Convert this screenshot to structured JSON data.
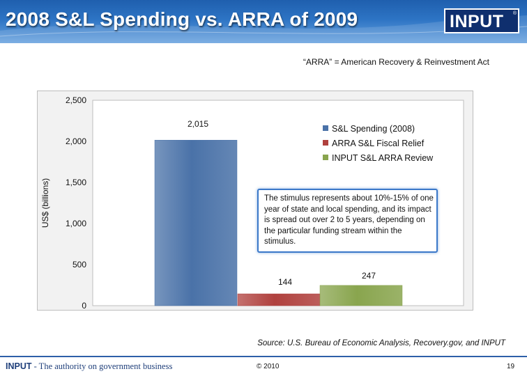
{
  "header": {
    "title": "2008 S&L Spending vs. ARRA of 2009",
    "logo_text": "INPUT",
    "logo_mark": "®"
  },
  "subtitle": "“ARRA” = American Recovery & Reinvestment Act",
  "chart_data": {
    "type": "bar",
    "ylabel": "US$ (billions)",
    "xlabel": "",
    "ylim": [
      0,
      2500
    ],
    "yticks": [
      0,
      500,
      1000,
      1500,
      2000,
      2500
    ],
    "ytick_labels": [
      "0",
      "500",
      "1,000",
      "1,500",
      "2,000",
      "2,500"
    ],
    "grid": false,
    "legend_position": "top-right",
    "series": [
      {
        "name": "S&L Spending (2008)",
        "value": 2015,
        "label": "2,015",
        "color": "#4a72a8"
      },
      {
        "name": "ARRA S&L Fiscal Relief",
        "value": 144,
        "label": "144",
        "color": "#b0413e"
      },
      {
        "name": "INPUT S&L ARRA Review",
        "value": 247,
        "label": "247",
        "color": "#89a54e"
      }
    ],
    "annotation": "The stimulus represents about 10%-15% of one year of state and local spending, and its impact is spread out over 2 to 5 years, depending on the particular funding stream within the stimulus."
  },
  "source": "Source: U.S. Bureau of Economic Analysis, Recovery.gov, and INPUT",
  "footer": {
    "brand": "INPUT",
    "tagline": " - The authority on government business",
    "copyright": "© 2010",
    "page_number": "19"
  }
}
